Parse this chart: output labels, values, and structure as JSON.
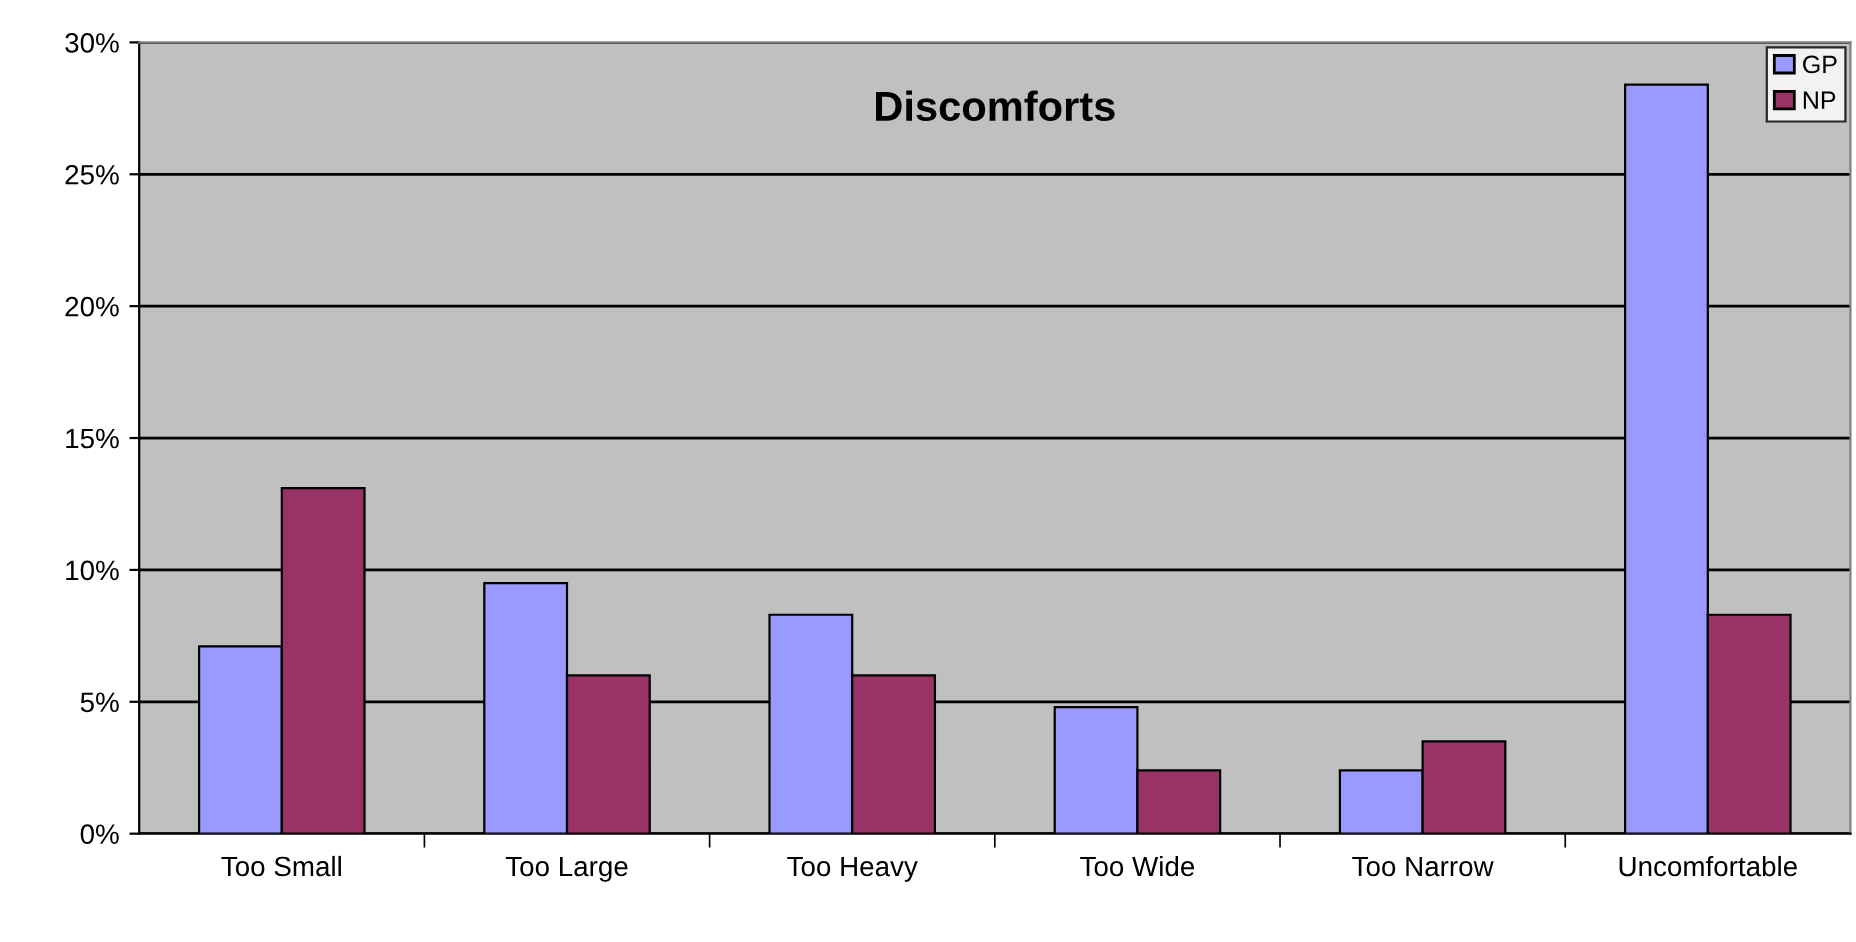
{
  "chart_data": {
    "type": "bar",
    "title": "Discomforts",
    "categories": [
      "Too Small",
      "Too Large",
      "Too Heavy",
      "Too Wide",
      "Too Narrow",
      "Uncomfortable"
    ],
    "series": [
      {
        "name": "GP",
        "color": "#9999ff",
        "values": [
          7.1,
          9.5,
          8.3,
          4.8,
          2.4,
          28.4
        ]
      },
      {
        "name": "NP",
        "color": "#993366",
        "values": [
          13.1,
          6.0,
          6.0,
          2.4,
          3.5,
          8.3
        ]
      }
    ],
    "ylim": [
      0,
      30
    ],
    "yticks": [
      {
        "value": 0,
        "label": "0%"
      },
      {
        "value": 5,
        "label": "5%"
      },
      {
        "value": 10,
        "label": "10%"
      },
      {
        "value": 15,
        "label": "15%"
      },
      {
        "value": 20,
        "label": "20%"
      },
      {
        "value": 25,
        "label": "25%"
      },
      {
        "value": 30,
        "label": "30%"
      }
    ],
    "grid": "y",
    "legend": "top right"
  }
}
